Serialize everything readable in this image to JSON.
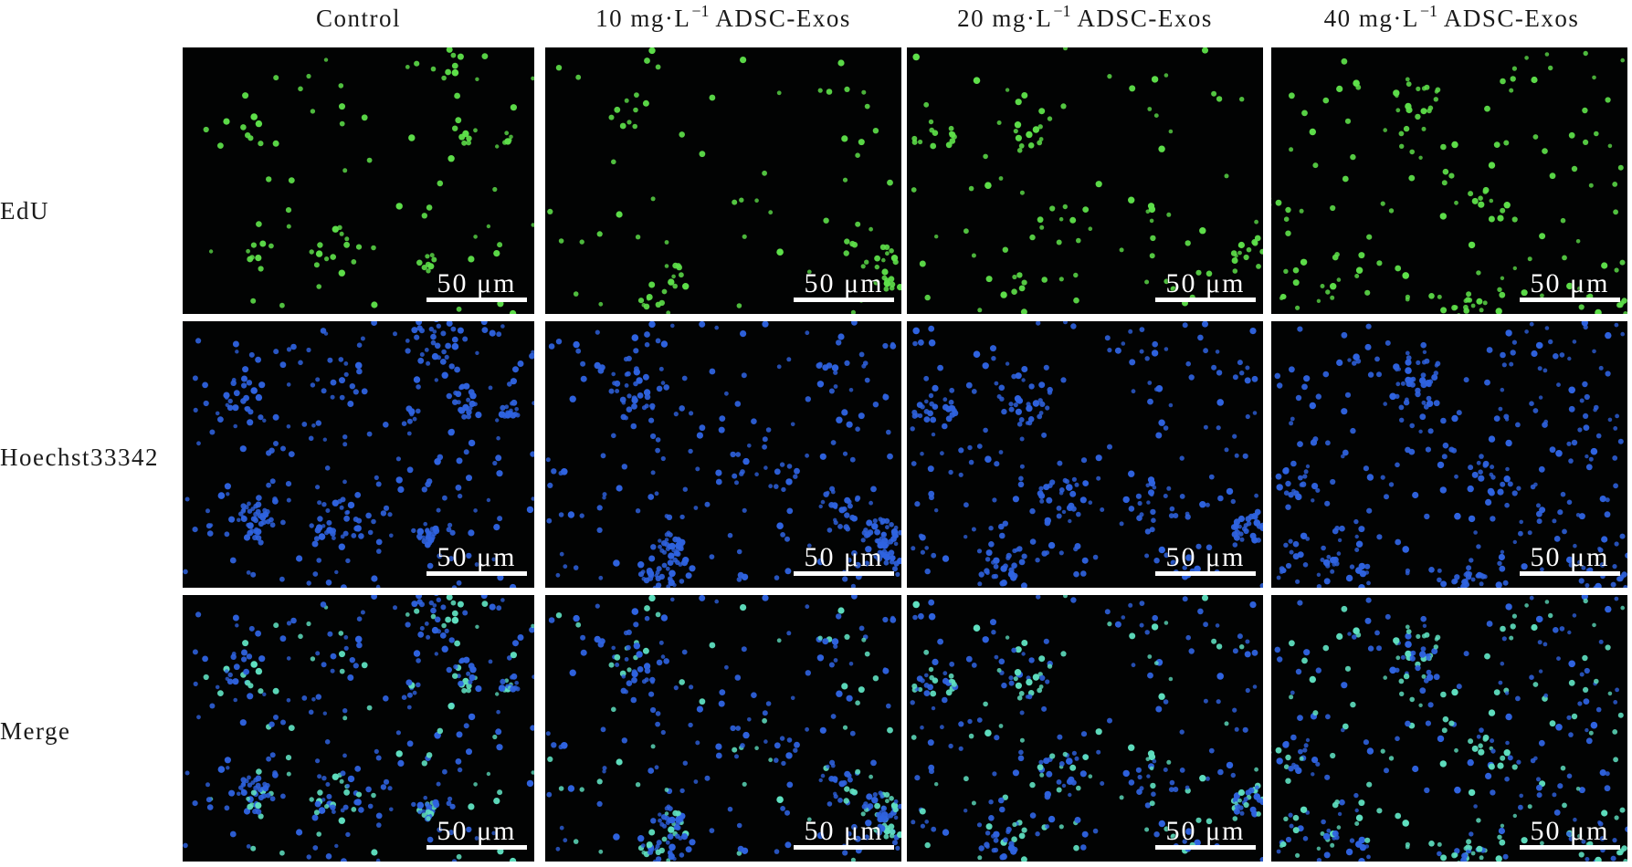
{
  "columns": [
    {
      "pre": "Control",
      "sup": "",
      "post": ""
    },
    {
      "pre": "10 mg·L",
      "sup": "−1",
      "post": " ADSC-Exos"
    },
    {
      "pre": "20 mg·L",
      "sup": "−1",
      "post": " ADSC-Exos"
    },
    {
      "pre": "40 mg·L",
      "sup": "−1",
      "post": " ADSC-Exos"
    }
  ],
  "rows": [
    "EdU",
    "Hoechst33342",
    "Merge"
  ],
  "scale_bar": "50 μm",
  "colors": {
    "edu": "#5ee04a",
    "hoechst": "#2f63e0",
    "merge_overlap": "#5fe0c0",
    "background": "#020303"
  }
}
